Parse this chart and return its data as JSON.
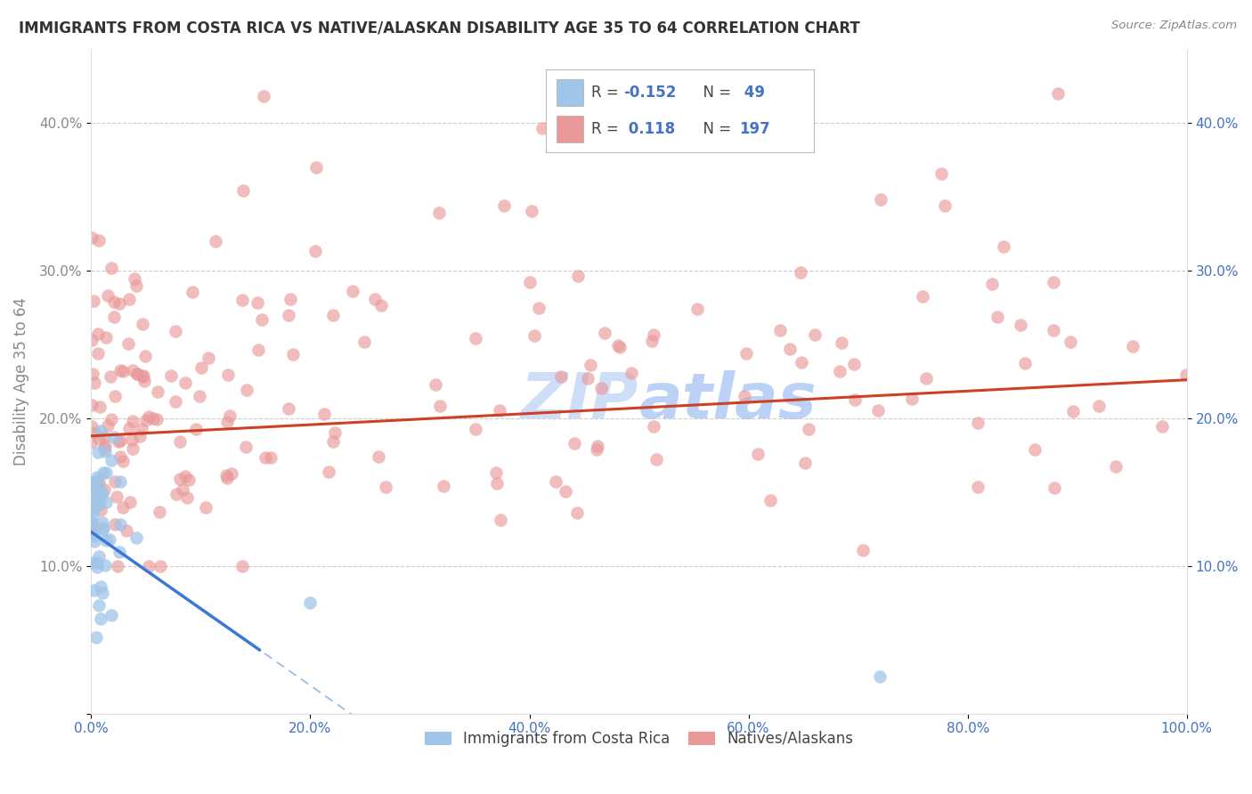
{
  "title": "IMMIGRANTS FROM COSTA RICA VS NATIVE/ALASKAN DISABILITY AGE 35 TO 64 CORRELATION CHART",
  "source": "Source: ZipAtlas.com",
  "ylabel": "Disability Age 35 to 64",
  "xlim": [
    0,
    1.0
  ],
  "ylim": [
    0,
    0.45
  ],
  "x_tick_vals": [
    0.0,
    0.2,
    0.4,
    0.6,
    0.8,
    1.0
  ],
  "x_tick_labels": [
    "0.0%",
    "20.0%",
    "40.0%",
    "60.0%",
    "80.0%",
    "100.0%"
  ],
  "y_tick_vals": [
    0.0,
    0.1,
    0.2,
    0.3,
    0.4
  ],
  "y_tick_labels": [
    "",
    "10.0%",
    "20.0%",
    "30.0%",
    "40.0%"
  ],
  "right_y_tick_vals": [
    0.1,
    0.2,
    0.3,
    0.4
  ],
  "right_y_tick_labels": [
    "10.0%",
    "20.0%",
    "30.0%",
    "40.0%"
  ],
  "blue_color": "#9fc5e8",
  "pink_color": "#ea9999",
  "blue_line_color": "#3c78d8",
  "pink_line_color": "#cc4125",
  "blue_R": -0.152,
  "blue_N": 49,
  "pink_R": 0.118,
  "pink_N": 197,
  "background_color": "#ffffff",
  "grid_color": "#cccccc",
  "watermark_color": "#c9daf8",
  "watermark_text": "ZIPAtlas",
  "legend_blue_r": "-0.152",
  "legend_blue_n": "49",
  "legend_pink_r": "0.118",
  "legend_pink_n": "197"
}
